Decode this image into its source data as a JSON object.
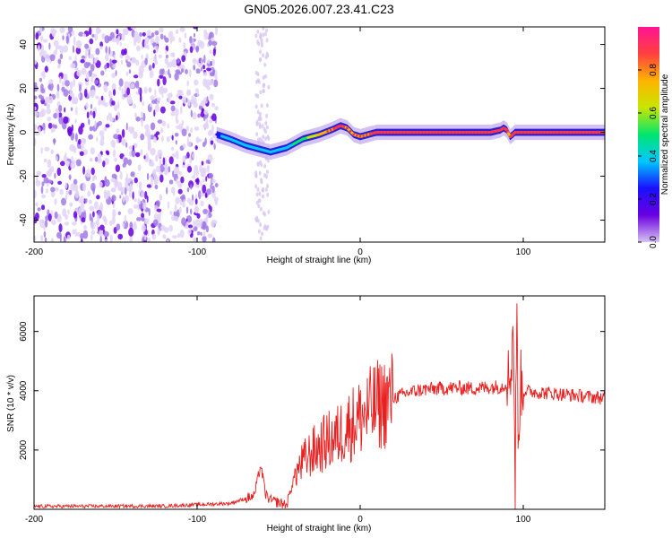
{
  "title": "GN05.2026.007.23.41.C23",
  "chart_data": [
    {
      "type": "heatmap",
      "title": "GN05.2026.007.23.41.C23",
      "xlabel": "Height of straight line (km)",
      "ylabel": "Frequency (Hz)",
      "xlim": [
        -200,
        150
      ],
      "ylim": [
        -50,
        48
      ],
      "xticks": [
        -200,
        -100,
        0,
        100
      ],
      "yticks": [
        -40,
        -20,
        0,
        20,
        40
      ],
      "colorbar": {
        "label": "Normalized spectral amplitude",
        "range": [
          0.0,
          1.0
        ],
        "ticks": [
          0.0,
          0.2,
          0.4,
          0.6,
          0.8
        ],
        "colors": [
          "#d6c3f2",
          "#6a00e0",
          "#1a10ff",
          "#00c8ff",
          "#00e66e",
          "#c8e600",
          "#ffb400",
          "#ff4040",
          "#ff1493"
        ]
      },
      "ridge": {
        "x": [
          -88,
          -80,
          -70,
          -60,
          -55,
          -45,
          -35,
          -25,
          -18,
          -12,
          -8,
          -4,
          0,
          5,
          10,
          20,
          40,
          60,
          80,
          86,
          88,
          90,
          92,
          95,
          100,
          120,
          150
        ],
        "y": [
          -1,
          -3,
          -6,
          -8,
          -9,
          -7,
          -3,
          -1,
          1,
          3,
          2,
          -1,
          -2,
          -1,
          0,
          0,
          0,
          0,
          0,
          1,
          2,
          1,
          -2,
          0,
          0,
          0,
          0
        ],
        "amplitude": [
          0.35,
          0.4,
          0.45,
          0.45,
          0.45,
          0.45,
          0.55,
          0.75,
          0.85,
          0.9,
          0.85,
          0.8,
          0.8,
          0.85,
          0.9,
          0.9,
          0.9,
          0.9,
          0.9,
          0.95,
          0.95,
          0.9,
          0.85,
          0.9,
          0.9,
          0.9,
          0.9
        ]
      },
      "noise_region_x": [
        -200,
        -88
      ]
    },
    {
      "type": "line",
      "title": "",
      "xlabel": "Height of straight line (km)",
      "ylabel": "SNR (10 * v/v)",
      "xlim": [
        -200,
        150
      ],
      "ylim": [
        0,
        7200
      ],
      "xticks": [
        -200,
        -100,
        0,
        100
      ],
      "yticks": [
        2000,
        4000,
        6000
      ],
      "series": [
        {
          "name": "SNR",
          "color": "#e82020",
          "x": [
            -200,
            -120,
            -80,
            -65,
            -61,
            -58,
            -55,
            -45,
            -40,
            -35,
            -30,
            -25,
            -20,
            -15,
            -10,
            -5,
            0,
            5,
            10,
            15,
            20,
            25,
            30,
            40,
            50,
            60,
            70,
            80,
            88,
            92,
            94,
            95,
            96,
            97,
            98,
            100,
            110,
            120,
            130,
            140,
            150
          ],
          "values": [
            100,
            110,
            200,
            450,
            1500,
            500,
            300,
            150,
            1200,
            1600,
            1900,
            2100,
            2300,
            2400,
            2700,
            2900,
            3100,
            3300,
            3500,
            3600,
            3750,
            3850,
            3950,
            4050,
            4080,
            4100,
            4080,
            4120,
            4150,
            4500,
            6200,
            400,
            7200,
            1500,
            4300,
            4000,
            3950,
            3900,
            3850,
            3800,
            3750
          ]
        }
      ]
    }
  ]
}
